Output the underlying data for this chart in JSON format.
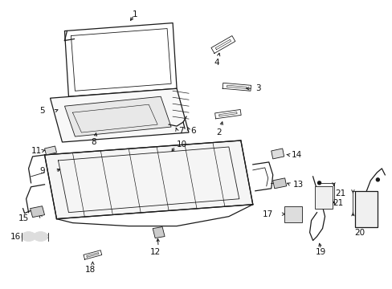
{
  "bg_color": "#ffffff",
  "line_color": "#1a1a1a",
  "label_color": "#111111",
  "fig_width": 4.89,
  "fig_height": 3.6,
  "dpi": 100
}
